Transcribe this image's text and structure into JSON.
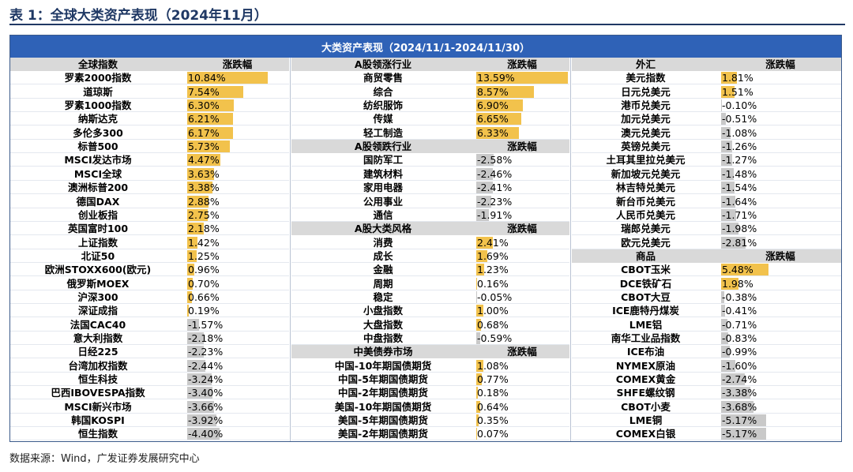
{
  "caption": "表 1：全球大类资产表现（2024年11月）",
  "banner": "大类资产表现（2024/11/1-2024/11/30）",
  "source": "数据来源：Wind，广发证券发展研究中心",
  "colors": {
    "banner": "#2f62b7",
    "positive_bar": "#f2c24c",
    "negative_bar": "#c9c9c9",
    "header_row": "#d9d9d9"
  },
  "scale_max_abs_pct": 13.59,
  "columns": [
    {
      "sections": [
        {
          "header": [
            "全球指数",
            "涨跌幅"
          ],
          "rows": [
            {
              "name": "罗素2000指数",
              "value": "10.84%",
              "num": 10.84
            },
            {
              "name": "道琼斯",
              "value": "7.54%",
              "num": 7.54
            },
            {
              "name": "罗素1000指数",
              "value": "6.30%",
              "num": 6.3
            },
            {
              "name": "纳斯达克",
              "value": "6.21%",
              "num": 6.21
            },
            {
              "name": "多伦多300",
              "value": "6.17%",
              "num": 6.17
            },
            {
              "name": "标普500",
              "value": "5.73%",
              "num": 5.73
            },
            {
              "name": "MSCI发达市场",
              "value": "4.47%",
              "num": 4.47
            },
            {
              "name": "MSCI全球",
              "value": "3.63%",
              "num": 3.63
            },
            {
              "name": "澳洲标普200",
              "value": "3.38%",
              "num": 3.38
            },
            {
              "name": "德国DAX",
              "value": "2.88%",
              "num": 2.88
            },
            {
              "name": "创业板指",
              "value": "2.75%",
              "num": 2.75
            },
            {
              "name": "英国富时100",
              "value": "2.18%",
              "num": 2.18
            },
            {
              "name": "上证指数",
              "value": "1.42%",
              "num": 1.42
            },
            {
              "name": "北证50",
              "value": "1.25%",
              "num": 1.25
            },
            {
              "name": "欧洲STOXX600(欧元)",
              "value": "0.96%",
              "num": 0.96
            },
            {
              "name": "俄罗斯MOEX",
              "value": "0.70%",
              "num": 0.7
            },
            {
              "name": "沪深300",
              "value": "0.66%",
              "num": 0.66
            },
            {
              "name": "深证成指",
              "value": "0.19%",
              "num": 0.19
            },
            {
              "name": "法国CAC40",
              "value": "-1.57%",
              "num": -1.57
            },
            {
              "name": "意大利指数",
              "value": "-2.18%",
              "num": -2.18
            },
            {
              "name": "日经225",
              "value": "-2.23%",
              "num": -2.23
            },
            {
              "name": "台湾加权指数",
              "value": "-2.44%",
              "num": -2.44
            },
            {
              "name": "恒生科技",
              "value": "-3.24%",
              "num": -3.24
            },
            {
              "name": "巴西IBOVESPA指数",
              "value": "-3.40%",
              "num": -3.4
            },
            {
              "name": "MSCI新兴市场",
              "value": "-3.66%",
              "num": -3.66
            },
            {
              "name": "韩国KOSPI",
              "value": "-3.92%",
              "num": -3.92
            },
            {
              "name": "恒生指数",
              "value": "-4.40%",
              "num": -4.4
            }
          ]
        }
      ]
    },
    {
      "sections": [
        {
          "header": [
            "A股领涨行业",
            "涨跌幅"
          ],
          "rows": [
            {
              "name": "商贸零售",
              "value": "13.59%",
              "num": 13.59
            },
            {
              "name": "综合",
              "value": "8.57%",
              "num": 8.57
            },
            {
              "name": "纺织服饰",
              "value": "6.90%",
              "num": 6.9
            },
            {
              "name": "传媒",
              "value": "6.65%",
              "num": 6.65
            },
            {
              "name": "轻工制造",
              "value": "6.33%",
              "num": 6.33
            }
          ]
        },
        {
          "header": [
            "A股领跌行业",
            "涨跌幅"
          ],
          "rows": [
            {
              "name": "国防军工",
              "value": "-2.58%",
              "num": -2.58
            },
            {
              "name": "建筑材料",
              "value": "-2.46%",
              "num": -2.46
            },
            {
              "name": "家用电器",
              "value": "-2.41%",
              "num": -2.41
            },
            {
              "name": "公用事业",
              "value": "-2.23%",
              "num": -2.23
            },
            {
              "name": "通信",
              "value": "-1.91%",
              "num": -1.91
            }
          ]
        },
        {
          "header": [
            "A股大类风格",
            "涨跌幅"
          ],
          "rows": [
            {
              "name": "消费",
              "value": "2.41%",
              "num": 2.41
            },
            {
              "name": "成长",
              "value": "1.69%",
              "num": 1.69
            },
            {
              "name": "金融",
              "value": "1.23%",
              "num": 1.23
            },
            {
              "name": "周期",
              "value": "0.16%",
              "num": 0.16
            },
            {
              "name": "稳定",
              "value": "-0.05%",
              "num": -0.05
            },
            {
              "name": "小盘指数",
              "value": "1.00%",
              "num": 1.0
            },
            {
              "name": "大盘指数",
              "value": "0.68%",
              "num": 0.68
            },
            {
              "name": "中盘指数",
              "value": "-0.59%",
              "num": -0.59
            }
          ]
        },
        {
          "header": [
            "中美债券市场",
            "涨跌幅"
          ],
          "rows": [
            {
              "name": "中国-10年期国债期货",
              "value": "1.08%",
              "num": 1.08
            },
            {
              "name": "中国-5年期国债期货",
              "value": "0.77%",
              "num": 0.77
            },
            {
              "name": "中国-2年期国债期货",
              "value": "0.18%",
              "num": 0.18
            },
            {
              "name": "美国-10年期国债期货",
              "value": "0.64%",
              "num": 0.64
            },
            {
              "name": "美国-5年期国债期货",
              "value": "0.35%",
              "num": 0.35
            },
            {
              "name": "美国-2年期国债期货",
              "value": "0.07%",
              "num": 0.07
            }
          ]
        }
      ]
    },
    {
      "sections": [
        {
          "header": [
            "外汇",
            "涨跌幅"
          ],
          "rows": [
            {
              "name": "美元指数",
              "value": "1.81%",
              "num": 1.81
            },
            {
              "name": "日元兑美元",
              "value": "1.51%",
              "num": 1.51
            },
            {
              "name": "港币兑美元",
              "value": "-0.10%",
              "num": -0.1
            },
            {
              "name": "加元兑美元",
              "value": "-0.51%",
              "num": -0.51
            },
            {
              "name": "澳元兑美元",
              "value": "-1.08%",
              "num": -1.08
            },
            {
              "name": "英镑兑美元",
              "value": "-1.26%",
              "num": -1.26
            },
            {
              "name": "土耳其里拉兑美元",
              "value": "-1.27%",
              "num": -1.27
            },
            {
              "name": "新加坡元兑美元",
              "value": "-1.48%",
              "num": -1.48
            },
            {
              "name": "林吉特兑美元",
              "value": "-1.54%",
              "num": -1.54
            },
            {
              "name": "新台币兑美元",
              "value": "-1.64%",
              "num": -1.64
            },
            {
              "name": "人民币兑美元",
              "value": "-1.71%",
              "num": -1.71
            },
            {
              "name": "瑞郎兑美元",
              "value": "-1.98%",
              "num": -1.98
            },
            {
              "name": "欧元兑美元",
              "value": "-2.81%",
              "num": -2.81
            }
          ]
        },
        {
          "header": [
            "商品",
            "涨跌幅"
          ],
          "rows": [
            {
              "name": "CBOT玉米",
              "value": "5.48%",
              "num": 5.48
            },
            {
              "name": "DCE铁矿石",
              "value": "1.98%",
              "num": 1.98
            },
            {
              "name": "CBOT大豆",
              "value": "-0.38%",
              "num": -0.38
            },
            {
              "name": "ICE鹿特丹煤炭",
              "value": "-0.41%",
              "num": -0.41
            },
            {
              "name": "LME铝",
              "value": "-0.71%",
              "num": -0.71
            },
            {
              "name": "南华工业品指数",
              "value": "-0.83%",
              "num": -0.83
            },
            {
              "name": "ICE布油",
              "value": "-0.99%",
              "num": -0.99
            },
            {
              "name": "NYMEX原油",
              "value": "-1.60%",
              "num": -1.6
            },
            {
              "name": "COMEX黄金",
              "value": "-2.74%",
              "num": -2.74
            },
            {
              "name": "SHFE螺纹钢",
              "value": "-3.38%",
              "num": -3.38
            },
            {
              "name": "CBOT小麦",
              "value": "-3.68%",
              "num": -3.68
            },
            {
              "name": "LME铜",
              "value": "-5.17%",
              "num": -5.17
            },
            {
              "name": "COMEX白银",
              "value": "-5.17%",
              "num": -5.17
            }
          ]
        }
      ]
    }
  ]
}
